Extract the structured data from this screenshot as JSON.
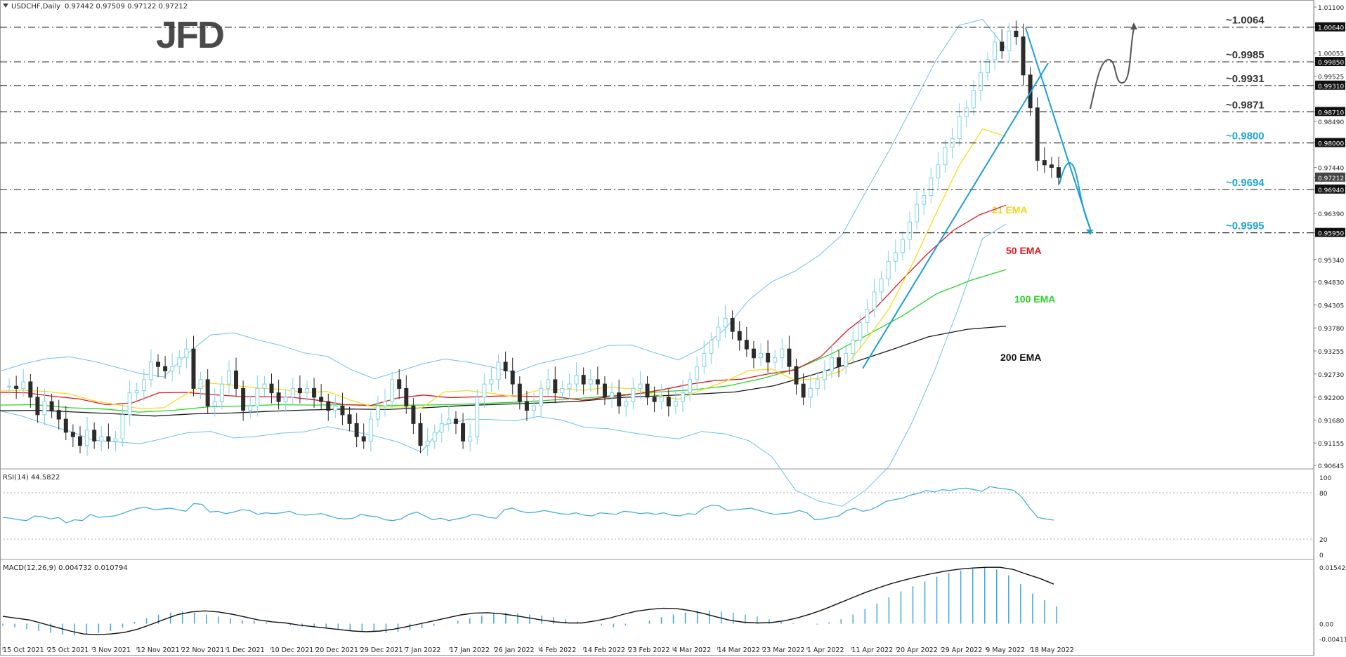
{
  "colors": {
    "up_candle": "#7fd3ea",
    "down_candle": "#2b2b2b",
    "ema21": "#f5dd1e",
    "ema50": "#e0171f",
    "ema100": "#27d427",
    "ema200": "#1a1a1a",
    "bollinger": "#6cc0ec",
    "rsi": "#3aa9d8",
    "macd_hist": "#3aa9d8",
    "macd_signal": "#111111",
    "level_dark": "#333333",
    "level_blue": "#1fa3d6",
    "trend_blue": "#1aa0d8",
    "arrow_gray": "#555555"
  },
  "chart_data": [
    {
      "type": "candlestick",
      "symbol_label": "USDCHF,Daily",
      "ohlc_label": "0.97442 0.97509 0.97122 0.97212",
      "logo": "JFD",
      "ylim": [
        0.90645,
        1.011
      ],
      "y_ticks": [
        "1.01100",
        "1.00640",
        "1.00055",
        "0.99525",
        "0.98710",
        "0.98490",
        "0.98000",
        "0.97440",
        "0.97212",
        "0.96940",
        "0.96390",
        "0.95950",
        "0.95340",
        "0.94830",
        "0.94305",
        "0.93780",
        "0.93255",
        "0.92730",
        "0.92200",
        "0.91680",
        "0.91155",
        "0.90645"
      ],
      "y_ticks_highlighted": [
        "1.00640",
        "0.99850",
        "0.99310",
        "0.98710",
        "0.98000",
        "0.97212",
        "0.96940",
        "0.95950"
      ],
      "x_ticks": [
        "15 Oct 2021",
        "25 Oct 2021",
        "3 Nov 2021",
        "12 Nov 2021",
        "22 Nov 2021",
        "1 Dec 2021",
        "10 Dec 2021",
        "20 Dec 2021",
        "29 Dec 2021",
        "7 Jan 2022",
        "17 Jan 2022",
        "26 Jan 2022",
        "4 Feb 2022",
        "14 Feb 2022",
        "23 Feb 2022",
        "4 Mar 2022",
        "14 Mar 2022",
        "23 Mar 2022",
        "1 Apr 2022",
        "11 Apr 2022",
        "20 Apr 2022",
        "29 Apr 2022",
        "9 May 2022",
        "18 May 2022"
      ],
      "levels": [
        {
          "label": "~1.0064",
          "value": 1.0064,
          "color": "dark"
        },
        {
          "label": "~0.9985",
          "value": 0.9985,
          "color": "dark"
        },
        {
          "label": "~0.9931",
          "value": 0.9931,
          "color": "dark"
        },
        {
          "label": "~0.9871",
          "value": 0.9871,
          "color": "dark"
        },
        {
          "label": "~0.9800",
          "value": 0.98,
          "color": "blue"
        },
        {
          "label": "~0.9694",
          "value": 0.9694,
          "color": "blue"
        },
        {
          "label": "~0.9595",
          "value": 0.9595,
          "color": "blue"
        }
      ],
      "ema_labels": {
        "ema21": "21 EMA",
        "ema50": "50 EMA",
        "ema100": "100 EMA",
        "ema200": "200 EMA"
      },
      "close_prices": [
        0.9245,
        0.924,
        0.9255,
        0.922,
        0.918,
        0.921,
        0.919,
        0.917,
        0.914,
        0.913,
        0.911,
        0.9145,
        0.912,
        0.913,
        0.912,
        0.9125,
        0.918,
        0.923,
        0.9235,
        0.926,
        0.93,
        0.929,
        0.928,
        0.929,
        0.931,
        0.933,
        0.924,
        0.926,
        0.92,
        0.921,
        0.925,
        0.928,
        0.924,
        0.919,
        0.92,
        0.924,
        0.925,
        0.923,
        0.921,
        0.922,
        0.924,
        0.923,
        0.924,
        0.922,
        0.921,
        0.919,
        0.92,
        0.918,
        0.916,
        0.913,
        0.912,
        0.917,
        0.92,
        0.921,
        0.926,
        0.924,
        0.92,
        0.916,
        0.911,
        0.912,
        0.914,
        0.916,
        0.917,
        0.916,
        0.912,
        0.913,
        0.922,
        0.925,
        0.926,
        0.93,
        0.928,
        0.925,
        0.921,
        0.919,
        0.92,
        0.924,
        0.926,
        0.923,
        0.924,
        0.925,
        0.927,
        0.925,
        0.926,
        0.925,
        0.922,
        0.923,
        0.92,
        0.921,
        0.924,
        0.925,
        0.922,
        0.921,
        0.922,
        0.92,
        0.921,
        0.923,
        0.926,
        0.929,
        0.932,
        0.935,
        0.938,
        0.94,
        0.937,
        0.935,
        0.933,
        0.931,
        0.932,
        0.93,
        0.931,
        0.933,
        0.929,
        0.925,
        0.922,
        0.924,
        0.926,
        0.928,
        0.931,
        0.929,
        0.932,
        0.935,
        0.939,
        0.942,
        0.946,
        0.949,
        0.953,
        0.955,
        0.958,
        0.962,
        0.966,
        0.968,
        0.972,
        0.975,
        0.979,
        0.981,
        0.986,
        0.988,
        0.992,
        0.996,
        0.999,
        1.003,
        1.001,
        1.0055,
        1.0042,
        0.9955,
        0.988,
        0.976,
        0.975,
        0.9744,
        0.97212
      ],
      "ema21_points": [
        0.9234,
        0.9236,
        0.9233,
        0.9227,
        0.9212,
        0.9203,
        0.9194,
        0.9196,
        0.9229,
        0.9252,
        0.9247,
        0.9241,
        0.9238,
        0.9231,
        0.9233,
        0.9213,
        0.9197,
        0.9198,
        0.9195,
        0.9232,
        0.9235,
        0.9229,
        0.9221,
        0.9236,
        0.9238,
        0.9236,
        0.9243,
        0.9239,
        0.9226,
        0.9215,
        0.9237,
        0.9256,
        0.9281,
        0.9284,
        0.9258,
        0.9263,
        0.9281,
        0.9348,
        0.9422,
        0.9524,
        0.9638,
        0.9748,
        0.9832,
        0.9815
      ],
      "ema50_points": [
        0.9231,
        0.923,
        0.9222,
        0.9216,
        0.9203,
        0.9207,
        0.923,
        0.9231,
        0.9226,
        0.9222,
        0.9221,
        0.922,
        0.9213,
        0.9203,
        0.9201,
        0.9218,
        0.9225,
        0.9219,
        0.9221,
        0.9223,
        0.9222,
        0.9221,
        0.9213,
        0.9221,
        0.9227,
        0.9237,
        0.9249,
        0.9258,
        0.9261,
        0.9273,
        0.9282,
        0.9312,
        0.9372,
        0.9419,
        0.9483,
        0.9545,
        0.96,
        0.9636,
        0.9658
      ],
      "ema100_points": [
        0.9202,
        0.9203,
        0.9196,
        0.9193,
        0.9186,
        0.919,
        0.9198,
        0.92,
        0.9203,
        0.9202,
        0.9203,
        0.9201,
        0.9202,
        0.9203,
        0.9206,
        0.9209,
        0.9214,
        0.9219,
        0.9226,
        0.9232,
        0.9237,
        0.9246,
        0.9263,
        0.9286,
        0.932,
        0.9362,
        0.9405,
        0.9456,
        0.9487,
        0.9511
      ],
      "ema200_points": [
        0.9189,
        0.919,
        0.9186,
        0.9182,
        0.9177,
        0.9182,
        0.9184,
        0.9188,
        0.9191,
        0.9193,
        0.9192,
        0.9196,
        0.9201,
        0.9204,
        0.9207,
        0.9211,
        0.9219,
        0.9223,
        0.9227,
        0.9232,
        0.9246,
        0.9271,
        0.9298,
        0.9327,
        0.9358,
        0.9375,
        0.9382
      ]
    },
    {
      "type": "line",
      "indicator_label": "RSI(14) 44.5822",
      "ylim": [
        0,
        100
      ],
      "y_ticks": [
        "100",
        "80",
        "20",
        "0"
      ],
      "values": [
        48,
        47,
        45,
        44,
        50,
        49,
        46,
        48,
        41,
        45,
        44,
        52,
        48,
        49,
        50,
        53,
        57,
        60,
        61,
        58,
        59,
        60,
        58,
        56,
        66,
        65,
        55,
        56,
        53,
        55,
        58,
        57,
        52,
        54,
        53,
        54,
        56,
        52,
        51,
        52,
        53,
        50,
        47,
        46,
        47,
        52,
        50,
        49,
        45,
        44,
        46,
        52,
        55,
        50,
        45,
        47,
        44,
        46,
        48,
        52,
        51,
        48,
        47,
        58,
        60,
        56,
        54,
        55,
        57,
        55,
        53,
        52,
        54,
        51,
        50,
        54,
        53,
        52,
        56,
        55,
        53,
        54,
        52,
        54,
        51,
        50,
        53,
        52,
        60,
        64,
        63,
        57,
        58,
        59,
        60,
        57,
        54,
        52,
        53,
        54,
        57,
        54,
        45,
        46,
        48,
        50,
        57,
        60,
        56,
        58,
        63,
        69,
        71,
        73,
        77,
        79,
        83,
        81,
        84,
        83,
        85,
        86,
        84,
        82,
        88,
        86,
        85,
        83,
        74,
        60,
        48,
        46,
        44.58
      ]
    },
    {
      "type": "bar",
      "indicator_label": "MACD(12,26,9) 0.004732 0.010794",
      "ylim": [
        -0.00411,
        0.015429
      ],
      "y_ticks": [
        "0.015429",
        "0.00",
        "-0.00411"
      ],
      "values": [
        -0.0005,
        -0.001,
        -0.0015,
        -0.002,
        -0.0025,
        -0.003,
        -0.0032,
        -0.003,
        -0.0025,
        -0.002,
        -0.001,
        0.0005,
        0.0015,
        0.0025,
        0.003,
        0.0033,
        0.003,
        0.0025,
        0.002,
        0.0015,
        0.001,
        0.0008,
        0.0004,
        0.0,
        -0.0005,
        -0.0008,
        -0.001,
        -0.0012,
        -0.0015,
        -0.0018,
        -0.002,
        -0.0022,
        -0.0025,
        -0.0022,
        -0.0018,
        -0.0012,
        -0.0006,
        0.0,
        0.0008,
        0.0015,
        0.0022,
        0.0028,
        0.003,
        0.0028,
        0.0025,
        0.0022,
        0.0018,
        0.0012,
        0.0006,
        0.0,
        -0.0005,
        -0.001,
        -0.0005,
        0.0,
        0.0008,
        0.0018,
        0.0025,
        0.003,
        0.0034,
        0.0035,
        0.0033,
        0.003,
        0.0025,
        0.002,
        0.0012,
        0.0005,
        0.0002,
        0.0,
        -0.0002,
        0.0004,
        0.0012,
        0.0025,
        0.004,
        0.0055,
        0.0072,
        0.0088,
        0.0102,
        0.0115,
        0.0128,
        0.0139,
        0.0145,
        0.0151,
        0.0154,
        0.0148,
        0.0132,
        0.0108,
        0.0082,
        0.0064,
        0.0047
      ],
      "signal": [
        0.002,
        0.0015,
        0.001,
        0.0,
        -0.001,
        -0.002,
        -0.0028,
        -0.003,
        -0.0028,
        -0.0024,
        -0.0015,
        -0.0002,
        0.0012,
        0.0025,
        0.0032,
        0.0035,
        0.0032,
        0.0026,
        0.0018,
        0.001,
        0.0005,
        0.0002,
        -0.0004,
        -0.0008,
        -0.0012,
        -0.0016,
        -0.002,
        -0.0022,
        -0.002,
        -0.0015,
        -0.0008,
        0.0,
        0.0008,
        0.0016,
        0.0024,
        0.0029,
        0.003,
        0.0027,
        0.0022,
        0.0016,
        0.001,
        0.0005,
        0.0002,
        0.0002,
        0.0008,
        0.0015,
        0.0025,
        0.0034,
        0.0039,
        0.0042,
        0.0041,
        0.0036,
        0.0028,
        0.0018,
        0.0009,
        0.0004,
        0.0002,
        0.0003,
        0.0008,
        0.0016,
        0.0027,
        0.004,
        0.0055,
        0.007,
        0.0085,
        0.0098,
        0.011,
        0.012,
        0.0129,
        0.0137,
        0.0144,
        0.0149,
        0.0152,
        0.0154,
        0.0154,
        0.0148,
        0.0135,
        0.0123,
        0.0108
      ]
    }
  ]
}
